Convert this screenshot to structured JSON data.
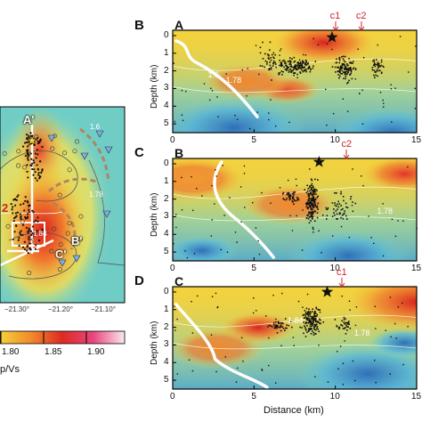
{
  "panel_letters": {
    "b": "B",
    "c": "C",
    "d": "D"
  },
  "profiles": [
    {
      "letter": "A",
      "markers": [
        "c1",
        "c2"
      ]
    },
    {
      "letter": "B",
      "markers": [
        "c2"
      ]
    },
    {
      "letter": "C",
      "markers": [
        "c1"
      ]
    }
  ],
  "map": {
    "section_labels": [
      "A'",
      "B'",
      "C'"
    ],
    "red_label": "2",
    "lon_ticks": [
      "−21.30°",
      "−21.20°",
      "−21.10°"
    ],
    "contour_labels": [
      "1.6",
      "1.78",
      "1.84"
    ]
  },
  "colorbar": {
    "ticks": [
      "1.80",
      "1.85",
      "1.90"
    ],
    "label": "Vp/Vs",
    "label_visible": "p/Vs"
  },
  "axes": {
    "ylabel": "Depth (km)",
    "xlabel": "Distance (km)",
    "y_ticks": [
      "0",
      "1",
      "2",
      "3",
      "4",
      "5"
    ],
    "x_ticks": [
      "0",
      "5",
      "10",
      "15"
    ]
  },
  "colors": {
    "marker_red": "#d2232a",
    "hot": "#e8312a",
    "warm": "#f4d23a",
    "cool": "#6ccbd0",
    "cold": "#3b82c4"
  },
  "chart_data": [
    {
      "type": "heatmap",
      "title": "A",
      "ylabel": "Depth (km)",
      "xlabel": "",
      "xlim": [
        0,
        15
      ],
      "ylim": [
        5.5,
        -0.3
      ],
      "stations": [
        {
          "name": "c1",
          "x": 10.0
        },
        {
          "name": "c2",
          "x": 11.6
        }
      ],
      "star": {
        "x": 9.8,
        "depth": 0.1
      },
      "contour_labels": [
        {
          "text": "1.6",
          "x": 2.6,
          "depth": 2.2
        },
        {
          "text": "1.78",
          "x": 3.7,
          "depth": 2.5
        }
      ]
    },
    {
      "type": "heatmap",
      "title": "B",
      "ylabel": "Depth (km)",
      "xlabel": "",
      "xlim": [
        0,
        15
      ],
      "ylim": [
        5.5,
        -0.3
      ],
      "stations": [
        {
          "name": "c2",
          "x": 10.7
        }
      ],
      "star": {
        "x": 9.0,
        "depth": -0.1
      },
      "contour_labels": [
        {
          "text": "1.78",
          "x": 13.0,
          "depth": 2.7
        }
      ]
    },
    {
      "type": "heatmap",
      "title": "C",
      "ylabel": "Depth (km)",
      "xlabel": "Distance (km)",
      "xlim": [
        0,
        15
      ],
      "ylim": [
        5.5,
        -0.3
      ],
      "stations": [
        {
          "name": "c1",
          "x": 10.4
        }
      ],
      "star": {
        "x": 9.5,
        "depth": 0.0
      },
      "contour_labels": [
        {
          "text": "1.84",
          "x": 7.5,
          "depth": 1.6
        },
        {
          "text": "1.78",
          "x": 11.6,
          "depth": 2.3
        }
      ]
    }
  ]
}
